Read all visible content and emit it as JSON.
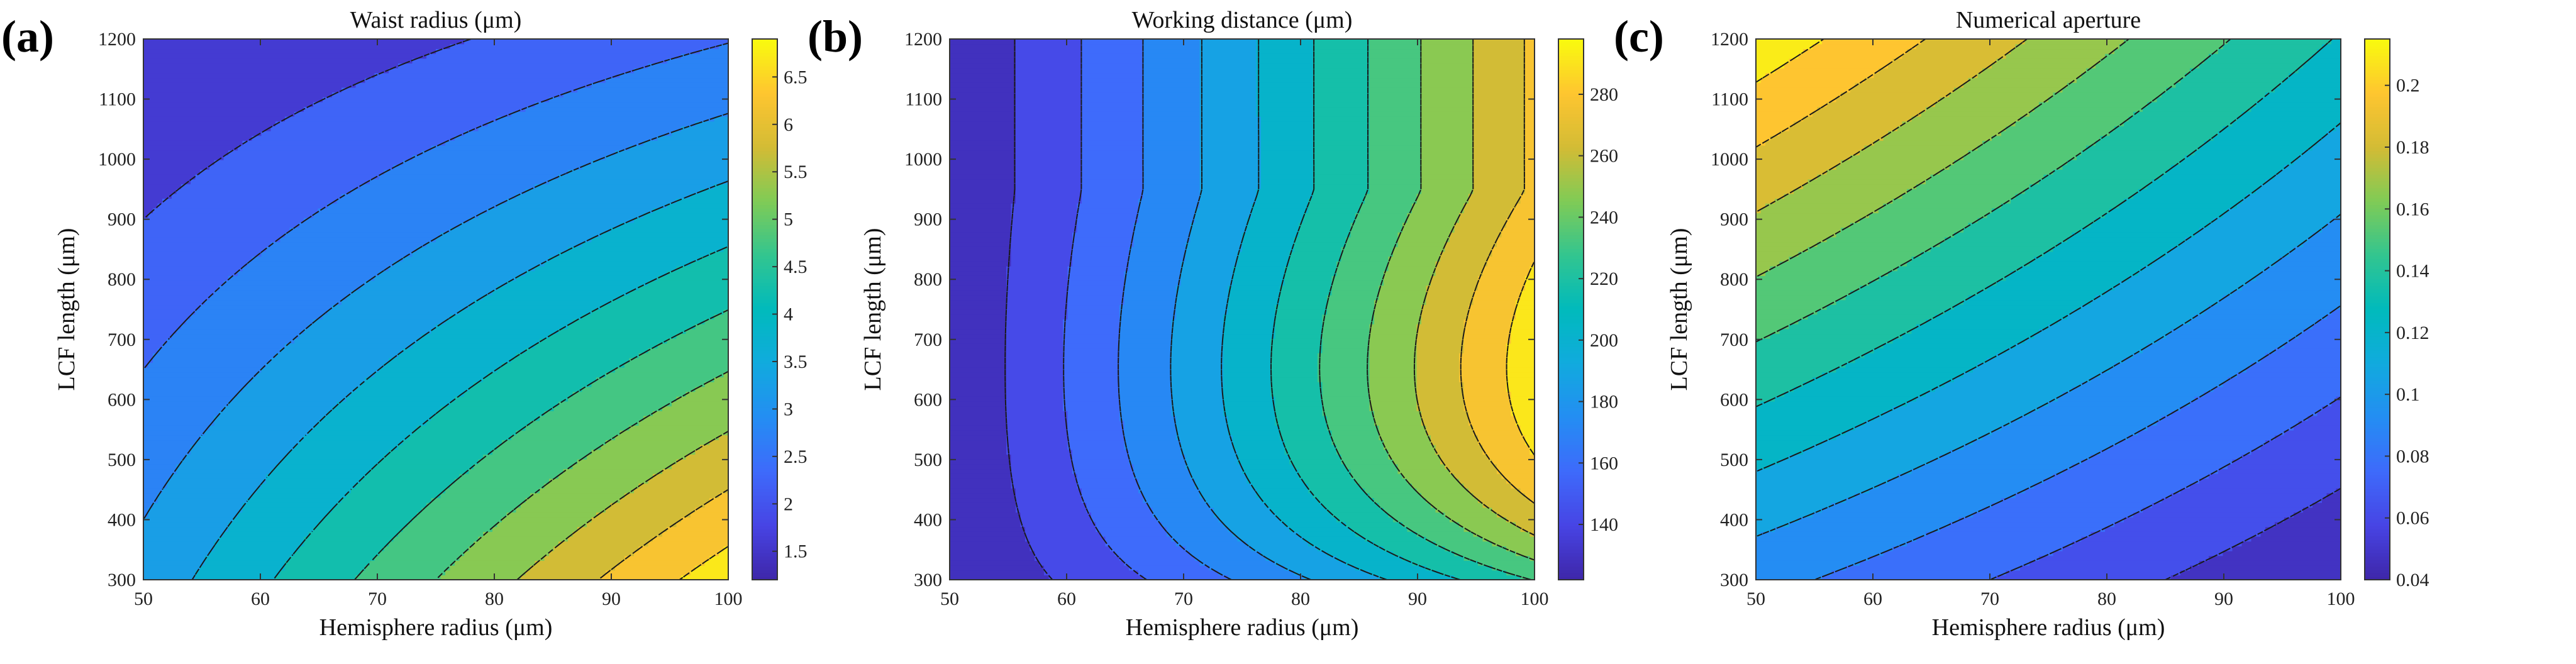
{
  "chart_data": [
    {
      "type": "heatmap",
      "subtype": "filled-contour",
      "panel_label": "(a)",
      "title": "Waist radius (μm)",
      "xlabel": "Hemisphere radius (μm)",
      "ylabel": "LCF length (μm)",
      "xlim": [
        50,
        100
      ],
      "ylim": [
        300,
        1200
      ],
      "x_ticks": [
        50,
        60,
        70,
        80,
        90,
        100
      ],
      "y_ticks": [
        300,
        400,
        500,
        600,
        700,
        800,
        900,
        1000,
        1100,
        1200
      ],
      "colorbar": {
        "min": 1.2,
        "max": 6.9,
        "ticks": [
          1.5,
          2,
          2.5,
          3,
          3.5,
          4,
          4.5,
          5,
          5.5,
          6,
          6.5
        ],
        "tick_labels": [
          "1.5",
          "2",
          "2.5",
          "3",
          "3.5",
          "4",
          "4.5",
          "5",
          "5.5",
          "6",
          "6.5"
        ]
      },
      "contour_levels": [
        2,
        2.5,
        3,
        3.5,
        4,
        4.5,
        5,
        5.5,
        6,
        6.5
      ],
      "model": "waist",
      "corner_values": {
        "x50_y300": 3.2,
        "x100_y300": 6.9,
        "x50_y1200": 1.4,
        "x100_y1200": 3.0
      }
    },
    {
      "type": "heatmap",
      "subtype": "filled-contour",
      "panel_label": "(b)",
      "title": "Working distance (μm)",
      "xlabel": "Hemisphere radius (μm)",
      "ylabel": "LCF length (μm)",
      "xlim": [
        50,
        100
      ],
      "ylim": [
        300,
        1200
      ],
      "x_ticks": [
        50,
        60,
        70,
        80,
        90,
        100
      ],
      "y_ticks": [
        300,
        400,
        500,
        600,
        700,
        800,
        900,
        1000,
        1100,
        1200
      ],
      "colorbar": {
        "min": 122,
        "max": 298,
        "ticks": [
          140,
          160,
          180,
          200,
          220,
          240,
          260,
          280
        ],
        "tick_labels": [
          "140",
          "160",
          "180",
          "200",
          "220",
          "240",
          "260",
          "280"
        ]
      },
      "contour_levels": [
        135,
        150,
        165,
        180,
        195,
        210,
        225,
        240,
        255,
        270,
        285
      ],
      "model": "working_distance",
      "corner_values": {
        "x50_y300": 122,
        "x100_y300": 215,
        "x50_y1200": 124,
        "x100_y1200": 270,
        "x100_y650": 298
      }
    },
    {
      "type": "heatmap",
      "subtype": "filled-contour",
      "panel_label": "(c)",
      "title": "Numerical aperture",
      "xlabel": "Hemisphere radius (μm)",
      "ylabel": "LCF length (μm)",
      "xlim": [
        50,
        100
      ],
      "ylim": [
        300,
        1200
      ],
      "x_ticks": [
        50,
        60,
        70,
        80,
        90,
        100
      ],
      "y_ticks": [
        300,
        400,
        500,
        600,
        700,
        800,
        900,
        1000,
        1100,
        1200
      ],
      "colorbar": {
        "min": 0.04,
        "max": 0.215,
        "ticks": [
          0.04,
          0.06,
          0.08,
          0.1,
          0.12,
          0.14,
          0.16,
          0.18,
          0.2
        ],
        "tick_labels": [
          "0.04",
          "0.06",
          "0.08",
          "0.1",
          "0.12",
          "0.14",
          "0.16",
          "0.18",
          "0.2"
        ]
      },
      "contour_levels": [
        0.055,
        0.07,
        0.085,
        0.1,
        0.115,
        0.13,
        0.145,
        0.16,
        0.175,
        0.19,
        0.205
      ],
      "model": "na",
      "corner_values": {
        "x50_y300": 0.09,
        "x100_y300": 0.04,
        "x50_y1200": 0.215,
        "x100_y1200": 0.1
      }
    }
  ]
}
